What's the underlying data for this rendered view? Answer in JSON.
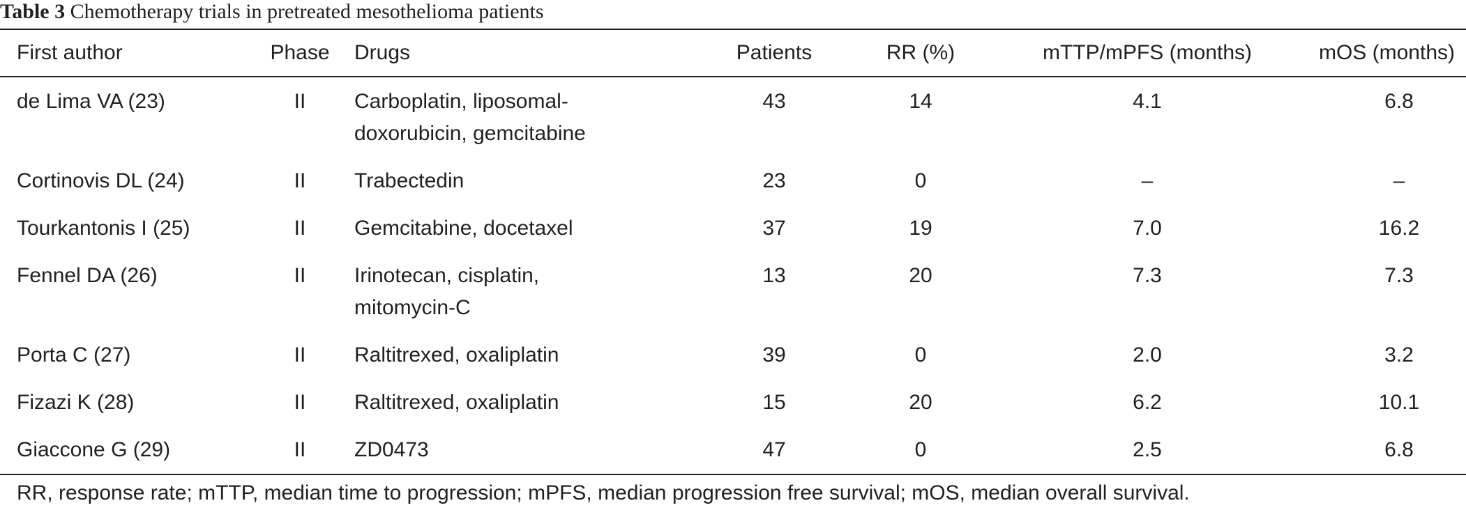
{
  "caption": {
    "label": "Table 3",
    "title": "Chemotherapy trials in pretreated mesothelioma patients"
  },
  "headers": {
    "author": "First author",
    "phase": "Phase",
    "drugs": "Drugs",
    "patients": "Patients",
    "rr": "RR (%)",
    "ttp": "mTTP/mPFS (months)",
    "os": "mOS (months)"
  },
  "rows": [
    {
      "author": "de Lima VA (23)",
      "phase": "II",
      "drugs": "Carboplatin, liposomal-doxorubicin, gemcitabine",
      "drugs_line1": "Carboplatin, liposomal-",
      "drugs_line2": "doxorubicin, gemcitabine",
      "patients": "43",
      "rr": "14",
      "ttp": "4.1",
      "os": "6.8"
    },
    {
      "author": "Cortinovis DL (24)",
      "phase": "II",
      "drugs_line1": "Trabectedin",
      "patients": "23",
      "rr": "0",
      "ttp": "–",
      "os": "–"
    },
    {
      "author": "Tourkantonis I (25)",
      "phase": "II",
      "drugs_line1": "Gemcitabine, docetaxel",
      "patients": "37",
      "rr": "19",
      "ttp": "7.0",
      "os": "16.2"
    },
    {
      "author": "Fennel DA (26)",
      "phase": "II",
      "drugs_line1": "Irinotecan, cisplatin,",
      "drugs_line2": "mitomycin-C",
      "patients": "13",
      "rr": "20",
      "ttp": "7.3",
      "os": "7.3"
    },
    {
      "author": "Porta C (27)",
      "phase": "II",
      "drugs_line1": "Raltitrexed, oxaliplatin",
      "patients": "39",
      "rr": "0",
      "ttp": "2.0",
      "os": "3.2"
    },
    {
      "author": "Fizazi K (28)",
      "phase": "II",
      "drugs_line1": "Raltitrexed, oxaliplatin",
      "patients": "15",
      "rr": "20",
      "ttp": "6.2",
      "os": "10.1"
    },
    {
      "author": "Giaccone G (29)",
      "phase": "II",
      "drugs_line1": "ZD0473",
      "patients": "47",
      "rr": "0",
      "ttp": "2.5",
      "os": "6.8"
    }
  ],
  "footnote": "RR, response rate; mTTP, median time to progression; mPFS, median progression free survival; mOS, median overall survival."
}
